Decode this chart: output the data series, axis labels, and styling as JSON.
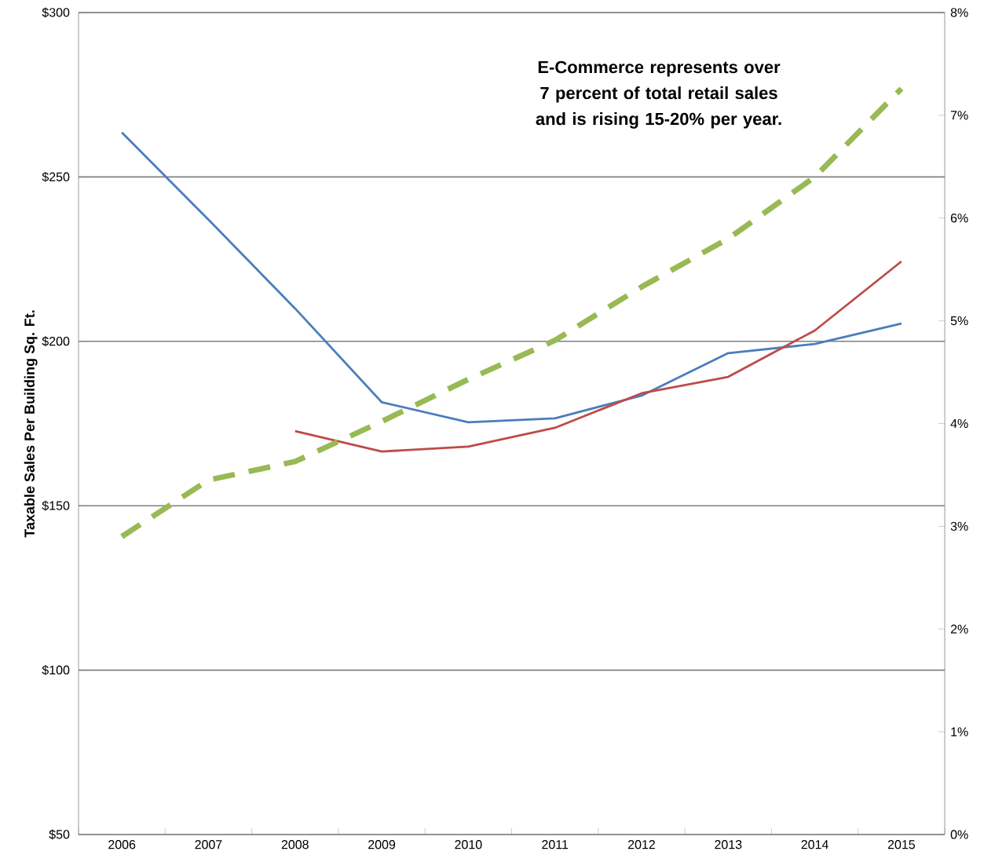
{
  "chart_data": {
    "type": "line",
    "ylabel": "Taxable Sales Per Building Sq. Ft.",
    "annotations": [
      "E-Commerce represents over 7 percent of total retail sales and is rising 15-20% per year."
    ],
    "categories": [
      "2006",
      "2007",
      "2008",
      "2009",
      "2010",
      "2011",
      "2012",
      "2013",
      "2014",
      "2015"
    ],
    "series": [
      {
        "color": "#4a7ebb",
        "values": [
          263.5,
          237,
          210,
          181.5,
          175.4,
          176.6,
          183.5,
          196.4,
          199.2,
          205.4
        ]
      },
      {
        "color": "#be4b48",
        "values": [
          null,
          null,
          172.7,
          166.5,
          168,
          173.7,
          184.2,
          189.2,
          203.3,
          224.3
        ]
      },
      {
        "color": "#98b954",
        "axis": "y2",
        "line_style": "dashed",
        "values": [
          2.9,
          3.45,
          3.63,
          4.02,
          4.43,
          4.81,
          5.33,
          5.8,
          6.4,
          7.26
        ]
      }
    ],
    "ylim": [
      50,
      300
    ],
    "yticks": [
      {
        "value": 50,
        "label": "$50"
      },
      {
        "value": 100,
        "label": "$100"
      },
      {
        "value": 150,
        "label": "$150"
      },
      {
        "value": 200,
        "label": "$200"
      },
      {
        "value": 250,
        "label": "$250"
      },
      {
        "value": 300,
        "label": "$300"
      }
    ],
    "y2lim": [
      0,
      8
    ],
    "y2ticks": [
      {
        "value": 0,
        "label": "0%"
      },
      {
        "value": 1,
        "label": "1%"
      },
      {
        "value": 2,
        "label": "2%"
      },
      {
        "value": 3,
        "label": "3%"
      },
      {
        "value": 4,
        "label": "4%"
      },
      {
        "value": 5,
        "label": "5%"
      },
      {
        "value": 6,
        "label": "6%"
      },
      {
        "value": 7,
        "label": "7%"
      },
      {
        "value": 8,
        "label": "8%"
      }
    ],
    "grid": "y",
    "marker": "none"
  }
}
